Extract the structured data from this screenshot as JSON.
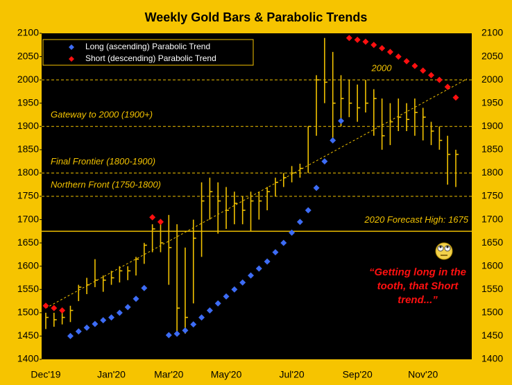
{
  "chart_data": {
    "type": "ohlc",
    "title": "Weekly Gold Bars & Parabolic Trends",
    "categories": [
      "Dec'19",
      null,
      null,
      null,
      null,
      null,
      null,
      null,
      "Jan'20",
      null,
      null,
      null,
      null,
      null,
      null,
      "Mar'20",
      null,
      null,
      null,
      null,
      null,
      null,
      "May'20",
      null,
      null,
      null,
      null,
      null,
      null,
      null,
      "Jul'20",
      null,
      null,
      null,
      null,
      null,
      null,
      null,
      "Sep'20",
      null,
      null,
      null,
      null,
      null,
      null,
      null,
      "Nov'20",
      null,
      null,
      null,
      null
    ],
    "high": [
      1500,
      1500,
      1505,
      1515,
      1560,
      1575,
      1615,
      1580,
      1590,
      1600,
      1600,
      1620,
      1650,
      1690,
      1700,
      1710,
      1690,
      1640,
      1700,
      1780,
      1790,
      1780,
      1770,
      1760,
      1750,
      1760,
      1760,
      1770,
      1790,
      1800,
      1815,
      1820,
      1900,
      2010,
      2090,
      2060,
      2010,
      2000,
      1990,
      2000,
      1980,
      1960,
      1950,
      1960,
      1950,
      1960,
      1940,
      1910,
      1900,
      1880,
      1850
    ],
    "low": [
      1465,
      1470,
      1475,
      1480,
      1525,
      1540,
      1555,
      1545,
      1560,
      1565,
      1570,
      1580,
      1605,
      1630,
      1630,
      1560,
      1460,
      1455,
      1520,
      1620,
      1700,
      1670,
      1680,
      1690,
      1690,
      1675,
      1700,
      1720,
      1750,
      1770,
      1780,
      1790,
      1800,
      1880,
      1950,
      1870,
      1900,
      1920,
      1910,
      1930,
      1880,
      1850,
      1860,
      1890,
      1890,
      1880,
      1870,
      1860,
      1850,
      1775,
      1770
    ],
    "close": [
      1490,
      1485,
      1490,
      1505,
      1555,
      1560,
      1570,
      1570,
      1575,
      1590,
      1590,
      1615,
      1645,
      1680,
      1650,
      1640,
      1510,
      1490,
      1660,
      1740,
      1760,
      1740,
      1720,
      1735,
      1720,
      1740,
      1740,
      1760,
      1780,
      1790,
      1800,
      1810,
      1900,
      2000,
      1995,
      1950,
      1960,
      1950,
      1940,
      1950,
      1960,
      1880,
      1910,
      1920,
      1915,
      1930,
      1920,
      1890,
      1870,
      1840,
      1840
    ],
    "bar_color": "#f2c200",
    "series": [
      {
        "name": "Long (ascending) Parabolic Trend",
        "color": "#3d6cf5",
        "values": [
          null,
          null,
          null,
          1450,
          1460,
          1468,
          1476,
          1484,
          1490,
          1500,
          1512,
          1530,
          1553,
          null,
          null,
          1452,
          1455,
          1462,
          1475,
          1490,
          1505,
          1520,
          1535,
          1550,
          1565,
          1580,
          1595,
          1610,
          1630,
          1650,
          1672,
          1695,
          1720,
          1768,
          1825,
          1870,
          1912,
          null,
          null,
          null,
          null,
          null,
          null,
          null,
          null,
          null,
          null,
          null,
          null,
          null,
          null
        ]
      },
      {
        "name": "Short (descending) Parabolic Trend",
        "color": "#ff1010",
        "values": [
          1515,
          1510,
          1505,
          null,
          null,
          null,
          null,
          null,
          null,
          null,
          null,
          null,
          null,
          1705,
          1695,
          null,
          null,
          null,
          null,
          null,
          null,
          null,
          null,
          null,
          null,
          null,
          null,
          null,
          null,
          null,
          null,
          null,
          null,
          null,
          null,
          null,
          null,
          2090,
          2086,
          2082,
          2075,
          2068,
          2060,
          2050,
          2040,
          2030,
          2020,
          2010,
          2000,
          1985,
          1962
        ]
      }
    ],
    "trend": {
      "values": [
        1510,
        2002
      ]
    },
    "reference_lines": [
      {
        "value": 2000,
        "label": "2000",
        "style": "dashed"
      },
      {
        "value": 1900,
        "label": "Gateway to 2000 (1900+)",
        "style": "dashed"
      },
      {
        "value": 1800,
        "label": "Final Frontier (1800-1900)",
        "style": "dashed"
      },
      {
        "value": 1750,
        "label": "Northern Front (1750-1800)",
        "style": "dashed"
      },
      {
        "value": 1675,
        "label": "2020 Forecast High: 1675",
        "style": "solid"
      }
    ],
    "annotation": [
      "“Getting long in the",
      "tooth, that Short",
      "trend...”"
    ],
    "ylim": [
      1400,
      2100
    ],
    "yticks": [
      1400,
      1450,
      1500,
      1550,
      1600,
      1650,
      1700,
      1750,
      1800,
      1850,
      1900,
      1950,
      2000,
      2050,
      2100
    ],
    "legend": "top-left"
  }
}
